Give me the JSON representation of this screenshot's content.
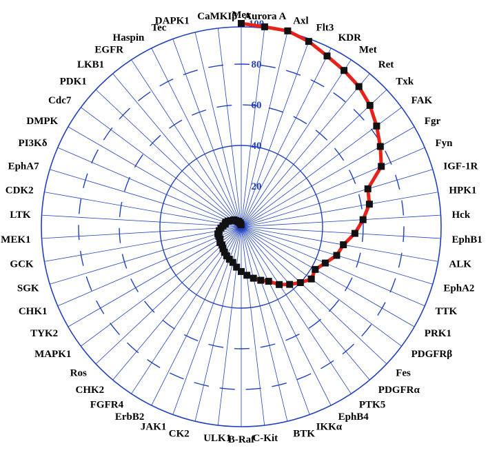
{
  "chart_data": {
    "type": "radar",
    "title": "",
    "axis_order": "clockwise-from-top",
    "r_range": [
      0,
      100
    ],
    "r_ticks": [
      20,
      40,
      60,
      80,
      100
    ],
    "grid_style": {
      "rings": "alternating solid/dashed",
      "spokes": "solid"
    },
    "colors": {
      "grid": "#1f3fbf",
      "line": "#e8221b",
      "marker": "#111111",
      "ticks": "#1f3fbf"
    },
    "categories": [
      "Mer",
      "Aurora A",
      "Axl",
      "Flt3",
      "KDR",
      "Met",
      "Ret",
      "Txk",
      "FAK",
      "Fgr",
      "Fyn",
      "IGF-1R",
      "HPK1",
      "Hck",
      "EphB1",
      "ALK",
      "EphA2",
      "TTK",
      "PRK1",
      "PDGFRβ",
      "Fes",
      "PDGFRα",
      "PTK5",
      "EphB4",
      "IKKα",
      "BTK",
      "C-Kit",
      "B-Raf",
      "ULK1",
      "CK2",
      "JAK1",
      "ErbB2",
      "FGFR4",
      "CHK2",
      "Ros",
      "MAPK1",
      "TYK2",
      "CHK1",
      "SGK",
      "GCK",
      "MEK1",
      "LTK",
      "CDK2",
      "EphA7",
      "PI3Kδ",
      "DMPK",
      "Cdc7",
      "PDK1",
      "LKB1",
      "EGFR",
      "Haspin",
      "Tec",
      "DAPK1",
      "CaMKIβ"
    ],
    "values": [
      100,
      99,
      99,
      97,
      94,
      92,
      90,
      87,
      83,
      79,
      75,
      65,
      64,
      60,
      56,
      51,
      49,
      45,
      42,
      43,
      40,
      37,
      34,
      30,
      28,
      26,
      24,
      22,
      20,
      18,
      17,
      16,
      15,
      14,
      13,
      13,
      12,
      12,
      12,
      11,
      10,
      9,
      8,
      8,
      7,
      6,
      5,
      5,
      4,
      3,
      3,
      2,
      2,
      1
    ]
  }
}
